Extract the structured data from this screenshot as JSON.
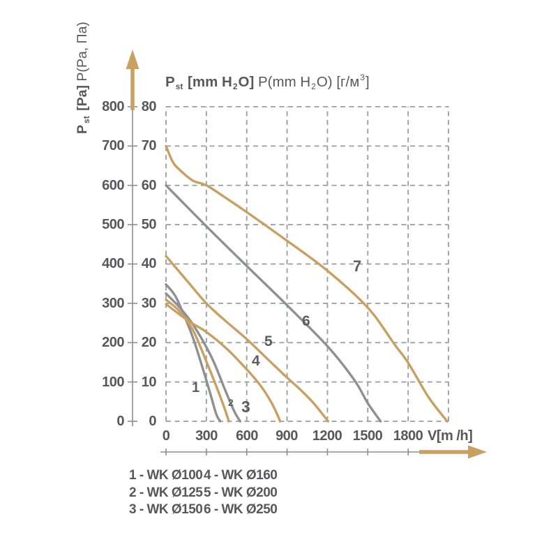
{
  "title": {
    "b1": "P",
    "sub1": "st",
    "b2": " [mm H",
    "sub2": "2",
    "b3": "O]",
    "n1": " P(mm H",
    "sub3": "2",
    "n2": "O) [г/м",
    "sup1": "3",
    "n3": "]"
  },
  "y_axis_label": {
    "b1": "P",
    "sub1": "st",
    "b2": " [Pa]",
    "n1": " P(Pa, Па)"
  },
  "axes": {
    "pa_ticks": [
      "800",
      "700",
      "600",
      "500",
      "400",
      "300",
      "200",
      "100",
      "0"
    ],
    "mm_ticks": [
      "80",
      "70",
      "60",
      "50",
      "40",
      "30",
      "20",
      "10",
      "0"
    ],
    "x_ticks": [
      "0",
      "300",
      "600",
      "900",
      "1200",
      "1500",
      "1800"
    ],
    "x_unit": "V[m /h]"
  },
  "legend": {
    "col1": [
      "1 - WK Ø100",
      "2 - WK Ø125",
      "3 - WK Ø150"
    ],
    "col2": [
      "4 - WK Ø160",
      "5 - WK Ø200",
      "6 - WK Ø250"
    ]
  },
  "colors": {
    "tan": "#c7a062",
    "gray": "#8e9092",
    "grid": "#9b9c9e",
    "axis": "#8d8e90",
    "text": "#58585a"
  },
  "chart_data": {
    "type": "line",
    "title": "P st [mm H2O]  P(mm H2O) [г/м3]",
    "xlabel": "V[m /h]",
    "ylabel": "P st [Pa]  P(Pa, Па)",
    "xlim": [
      0,
      2100
    ],
    "ylim": [
      0,
      800
    ],
    "x_grid_step": 300,
    "y_grid_step": 100,
    "x_tick_values": [
      0,
      300,
      600,
      900,
      1200,
      1500,
      1800
    ],
    "y_tick_values_pa": [
      0,
      100,
      200,
      300,
      400,
      500,
      600,
      700,
      800
    ],
    "y2_axis": {
      "label": "mm H2O",
      "tick_values": [
        0,
        10,
        20,
        30,
        40,
        50,
        60,
        70,
        80
      ]
    },
    "grid": "dashed",
    "legend_position": "below",
    "series": [
      {
        "label": "1",
        "name": "1 - WK Ø100",
        "color": "gray",
        "points": [
          [
            0,
            348
          ],
          [
            70,
            318
          ],
          [
            140,
            265
          ],
          [
            205,
            208
          ],
          [
            270,
            138
          ],
          [
            322,
            79
          ],
          [
            373,
            19
          ],
          [
            403,
            0
          ]
        ]
      },
      {
        "label": "2",
        "name": "2 - WK Ø125",
        "color": "tan",
        "points": [
          [
            0,
            309
          ],
          [
            100,
            280
          ],
          [
            200,
            232
          ],
          [
            300,
            152
          ],
          [
            390,
            75
          ],
          [
            440,
            28
          ],
          [
            467,
            0
          ]
        ]
      },
      {
        "label": "3",
        "name": "3 - WK Ø150",
        "color": "gray",
        "points": [
          [
            0,
            325
          ],
          [
            100,
            290
          ],
          [
            203,
            245
          ],
          [
            340,
            162
          ],
          [
            440,
            79
          ],
          [
            508,
            25
          ],
          [
            551,
            0
          ]
        ]
      },
      {
        "label": "4",
        "name": "4 - WK Ø160",
        "color": "tan",
        "points": [
          [
            0,
            298
          ],
          [
            100,
            272
          ],
          [
            200,
            248
          ],
          [
            300,
            227
          ],
          [
            450,
            185
          ],
          [
            600,
            132
          ],
          [
            700,
            92
          ],
          [
            780,
            50
          ],
          [
            830,
            15
          ],
          [
            848,
            0
          ]
        ]
      },
      {
        "label": "5",
        "name": "5 - WK Ø200",
        "color": "tan",
        "points": [
          [
            0,
            420
          ],
          [
            150,
            360
          ],
          [
            300,
            300
          ],
          [
            450,
            253
          ],
          [
            600,
            209
          ],
          [
            750,
            160
          ],
          [
            900,
            111
          ],
          [
            1000,
            80
          ],
          [
            1100,
            45
          ],
          [
            1205,
            0
          ]
        ]
      },
      {
        "label": "6",
        "name": "6 - WK Ø250",
        "color": "gray",
        "points": [
          [
            0,
            600
          ],
          [
            300,
            496
          ],
          [
            600,
            395
          ],
          [
            900,
            295
          ],
          [
            1200,
            191
          ],
          [
            1400,
            105
          ],
          [
            1500,
            46
          ],
          [
            1595,
            0
          ]
        ]
      },
      {
        "label": "7",
        "name": "7",
        "color": "tan",
        "points": [
          [
            0,
            700
          ],
          [
            50,
            660
          ],
          [
            100,
            640
          ],
          [
            200,
            612
          ],
          [
            300,
            600
          ],
          [
            450,
            567
          ],
          [
            600,
            532
          ],
          [
            900,
            459
          ],
          [
            1200,
            383
          ],
          [
            1500,
            289
          ],
          [
            1700,
            195
          ],
          [
            1800,
            149
          ],
          [
            1950,
            62
          ],
          [
            2090,
            0
          ]
        ]
      }
    ]
  }
}
